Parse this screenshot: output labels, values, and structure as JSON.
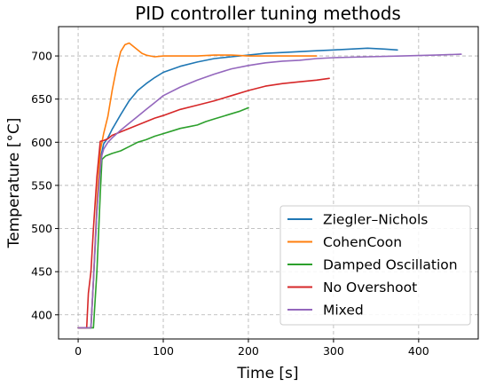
{
  "chart_data": {
    "type": "line",
    "title": "PID controller tuning methods",
    "xlabel": "Time [s]",
    "ylabel": "Temperature [°C]",
    "xlim": [
      -23,
      470
    ],
    "ylim": [
      372,
      734
    ],
    "xticks": [
      0,
      100,
      200,
      300,
      400
    ],
    "yticks": [
      400,
      450,
      500,
      550,
      600,
      650,
      700
    ],
    "grid": true,
    "grid_style": "dashed",
    "legend_position": "lower-right",
    "series": [
      {
        "name": "Ziegler–Nichols",
        "color": "#1f77b4",
        "x": [
          0,
          15,
          18,
          22,
          26,
          30,
          35,
          40,
          50,
          60,
          70,
          80,
          90,
          100,
          120,
          140,
          160,
          180,
          200,
          220,
          240,
          260,
          280,
          300,
          320,
          340,
          360,
          375
        ],
        "y": [
          385,
          385,
          440,
          520,
          580,
          598,
          605,
          615,
          632,
          648,
          660,
          668,
          675,
          681,
          688,
          693,
          697,
          699,
          701,
          703,
          704,
          705,
          706,
          707,
          708,
          709,
          708,
          707
        ]
      },
      {
        "name": "CohenCoon",
        "color": "#ff7f0e",
        "x": [
          0,
          15,
          18,
          22,
          26,
          30,
          35,
          40,
          45,
          50,
          55,
          60,
          65,
          70,
          75,
          80,
          85,
          90,
          100,
          120,
          140,
          160,
          180,
          200,
          220,
          240,
          260,
          280
        ],
        "y": [
          385,
          385,
          440,
          530,
          590,
          610,
          630,
          660,
          685,
          705,
          713,
          715,
          711,
          707,
          703,
          701,
          700,
          699,
          700,
          700,
          700,
          701,
          701,
          700,
          700,
          700,
          700,
          700
        ]
      },
      {
        "name": "Damped Oscillation",
        "color": "#2ca02c",
        "x": [
          0,
          15,
          18,
          22,
          26,
          28,
          32,
          40,
          50,
          60,
          70,
          80,
          90,
          100,
          110,
          120,
          130,
          140,
          150,
          160,
          170,
          180,
          190,
          200
        ],
        "y": [
          385,
          385,
          385,
          450,
          540,
          580,
          584,
          587,
          590,
          595,
          600,
          603,
          607,
          610,
          613,
          616,
          618,
          620,
          624,
          627,
          630,
          633,
          636,
          640
        ]
      },
      {
        "name": "No Overshoot",
        "color": "#d62728",
        "x": [
          0,
          10,
          12,
          15,
          18,
          22,
          26,
          30,
          35,
          40,
          50,
          60,
          70,
          80,
          90,
          100,
          120,
          140,
          160,
          180,
          200,
          220,
          240,
          260,
          280,
          295
        ],
        "y": [
          385,
          385,
          425,
          450,
          500,
          560,
          601,
          602,
          604,
          608,
          612,
          616,
          620,
          624,
          628,
          631,
          638,
          643,
          648,
          654,
          660,
          665,
          668,
          670,
          672,
          674
        ]
      },
      {
        "name": "Mixed",
        "color": "#9467bd",
        "x": [
          0,
          15,
          18,
          22,
          26,
          28,
          30,
          35,
          40,
          50,
          60,
          70,
          80,
          90,
          100,
          120,
          140,
          160,
          180,
          200,
          220,
          240,
          260,
          280,
          300,
          340,
          380,
          420,
          450
        ],
        "y": [
          385,
          385,
          440,
          520,
          570,
          585,
          592,
          600,
          605,
          614,
          622,
          630,
          638,
          646,
          654,
          664,
          672,
          679,
          685,
          689,
          692,
          694,
          695,
          697,
          698,
          699,
          700,
          701,
          702
        ]
      }
    ]
  }
}
